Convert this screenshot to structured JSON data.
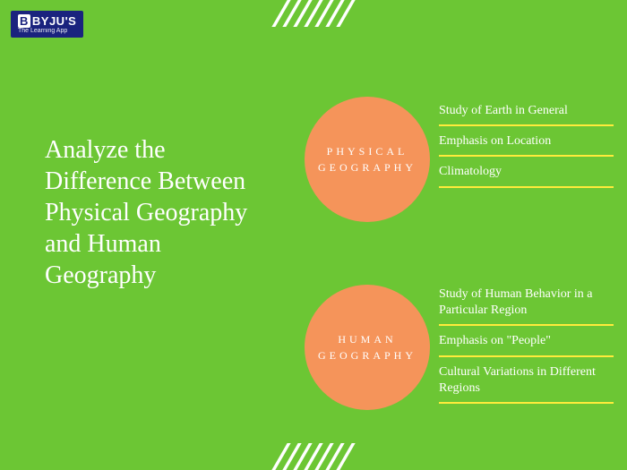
{
  "logo": {
    "main": "BYJU'S",
    "sub": "The Learning App"
  },
  "title": "Analyze the Difference Between Physical Geography and Human Geography",
  "background_color": "#6cc634",
  "circle_color": "#f5945a",
  "divider_color": "#ffeb3b",
  "text_color": "#ffffff",
  "sections": [
    {
      "label": "PHYSICAL GEOGRAPHY",
      "points": [
        "Study of Earth in General",
        "Emphasis on Location",
        "Climatology"
      ]
    },
    {
      "label": "HUMAN GEOGRAPHY",
      "points": [
        "Study of Human Behavior in a Particular Region",
        "Emphasis on \"People\"",
        "Cultural Variations in Different Regions"
      ]
    }
  ]
}
